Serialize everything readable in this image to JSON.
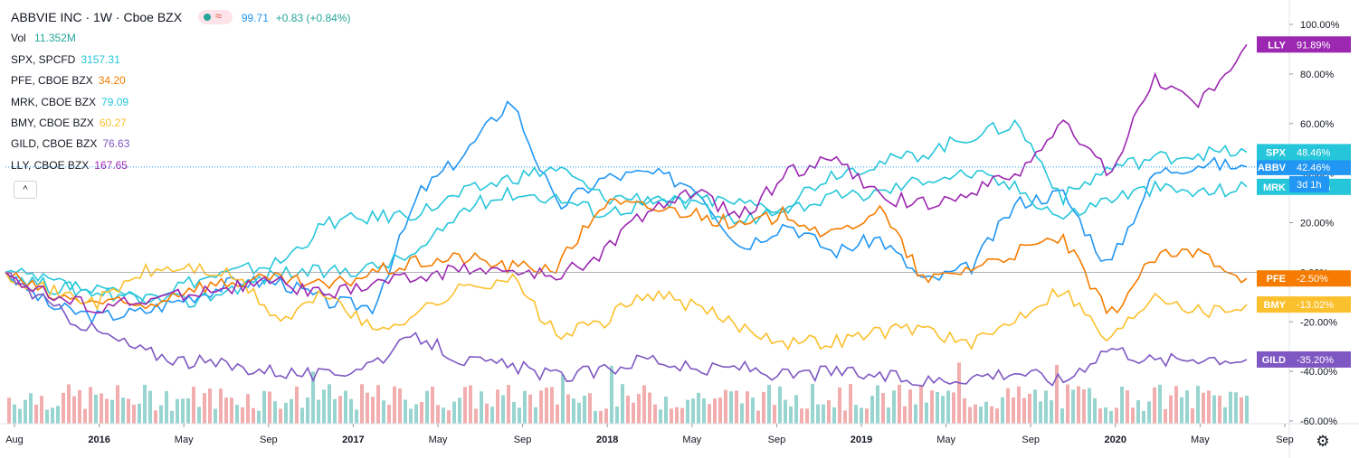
{
  "header": {
    "title": "ABBVIE INC · 1W · Cboe BZX",
    "price": "99.71",
    "change": "+0.83 (+0.84%)",
    "vol_label": "Vol",
    "vol_value": "11.352M",
    "collapse_glyph": "^",
    "settings_icon": "gear-icon"
  },
  "legend": [
    {
      "label": "SPX, SPCFD",
      "value": "3157.31",
      "color": "#26c6da"
    },
    {
      "label": "PFE, CBOE BZX",
      "value": "34.20",
      "color": "#f57c00"
    },
    {
      "label": "MRK, CBOE BZX",
      "value": "79.09",
      "color": "#26c6da"
    },
    {
      "label": "BMY, CBOE BZX",
      "value": "60.27",
      "color": "#fbc02d"
    },
    {
      "label": "GILD, CBOE BZX",
      "value": "76.63",
      "color": "#7e57c2"
    },
    {
      "label": "LLY, CBOE BZX",
      "value": "167.65",
      "color": "#9c27b0"
    }
  ],
  "chart_data": {
    "type": "line",
    "x_ticks": [
      "Aug",
      "2016",
      "May",
      "Sep",
      "2017",
      "May",
      "Sep",
      "2018",
      "May",
      "Sep",
      "2019",
      "May",
      "Sep",
      "2020",
      "May",
      "Sep"
    ],
    "y_axis": {
      "unit": "%",
      "ylim": [
        -60,
        100
      ],
      "ticks": [
        "100.00%",
        "80.00%",
        "60.00%",
        "40.00%",
        "20.00%",
        "0.00%",
        "-20.00%",
        "-40.00%",
        "-60.00%"
      ]
    },
    "series": [
      {
        "name": "ABBV",
        "color": "#2196f3",
        "last_label": "42.46%",
        "values": [
          0,
          -14,
          -18,
          -16,
          -10,
          -4,
          -4,
          -12,
          -14,
          32,
          48,
          70,
          26,
          38,
          40,
          35,
          10,
          20,
          8,
          14,
          -4,
          2,
          28,
          32,
          2,
          40,
          44,
          42.46
        ]
      },
      {
        "name": "SPX",
        "color": "#26c6da",
        "last_label": "48.46%",
        "values": [
          0,
          -6,
          -8,
          -10,
          -4,
          0,
          4,
          20,
          22,
          24,
          32,
          38,
          42,
          30,
          30,
          26,
          20,
          28,
          40,
          44,
          48,
          55,
          60,
          30,
          42,
          46,
          48,
          48.46
        ]
      },
      {
        "name": "MRK",
        "color": "#26c6da",
        "last_label": "34.46%",
        "values": [
          0,
          -4,
          -8,
          -10,
          -12,
          -6,
          0,
          0,
          2,
          8,
          26,
          32,
          30,
          24,
          28,
          30,
          28,
          26,
          30,
          32,
          38,
          40,
          34,
          22,
          30,
          34,
          32,
          34.46
        ]
      },
      {
        "name": "PFE",
        "color": "#f57c00",
        "last_label": "-2.50%",
        "values": [
          0,
          -10,
          -12,
          -14,
          -6,
          -4,
          -3,
          -6,
          0,
          4,
          6,
          2,
          2,
          28,
          26,
          24,
          18,
          24,
          14,
          26,
          -4,
          2,
          8,
          14,
          -18,
          6,
          8,
          -2.5
        ]
      },
      {
        "name": "BMY",
        "color": "#fbc02d",
        "last_label": "-13.02%",
        "values": [
          0,
          -8,
          -12,
          0,
          2,
          -2,
          -20,
          -8,
          -24,
          -16,
          -6,
          -2,
          -26,
          -20,
          -8,
          -14,
          -22,
          -28,
          -28,
          -24,
          -22,
          -30,
          -18,
          -6,
          -28,
          -8,
          -16,
          -13.02
        ]
      },
      {
        "name": "GILD",
        "color": "#7e57c2",
        "last_label": "-35.20%",
        "values": [
          0,
          -14,
          -24,
          -32,
          -36,
          -38,
          -40,
          -42,
          -36,
          -26,
          -36,
          -38,
          -42,
          -40,
          -34,
          -40,
          -38,
          -42,
          -40,
          -42,
          -44,
          -42,
          -40,
          -44,
          -30,
          -36,
          -34,
          -35.2
        ]
      },
      {
        "name": "LLY",
        "color": "#9c27b0",
        "last_label": "91.89%",
        "values": [
          0,
          -10,
          -14,
          -12,
          -8,
          -6,
          -4,
          -10,
          -4,
          -2,
          2,
          0,
          -2,
          8,
          26,
          32,
          22,
          40,
          46,
          30,
          28,
          32,
          40,
          60,
          40,
          78,
          68,
          91.89
        ]
      }
    ],
    "extra_labels": [
      {
        "text": "3d 1h",
        "color": "#2196f3"
      }
    ],
    "volume_bars": true,
    "grid": false,
    "legend_position": "top-left"
  }
}
